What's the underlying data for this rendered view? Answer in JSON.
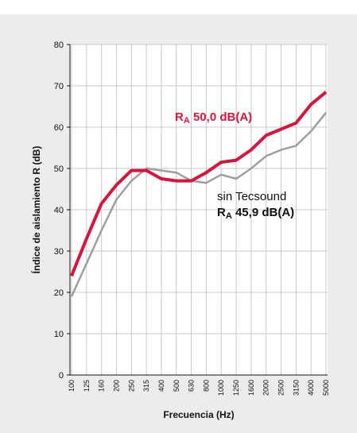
{
  "chart_data": {
    "type": "line",
    "y_label": "Índice de aislamiento R (dB)",
    "x_label": "Frecuencia (Hz)",
    "categories": [
      "100",
      "125",
      "160",
      "200",
      "250",
      "315",
      "400",
      "500",
      "630",
      "800",
      "1000",
      "1250",
      "1600",
      "2000",
      "2500",
      "3150",
      "4000",
      "5000"
    ],
    "series": [
      {
        "color": "#9e9e9e",
        "values": [
          19,
          27,
          35,
          42.5,
          47,
          50,
          49.5,
          49,
          47,
          46.5,
          48.5,
          47.5,
          50,
          53,
          54.5,
          55.5,
          59,
          63.5
        ]
      },
      {
        "color": "#d7143c",
        "values": [
          24,
          33,
          41.5,
          46,
          49.5,
          49.5,
          47.5,
          47,
          47,
          49,
          51.5,
          52,
          54.5,
          58,
          59.5,
          61,
          65.5,
          68.5
        ]
      }
    ],
    "annotations": [
      {
        "color": "#d7143c",
        "lines": [
          [
            "R",
            "A",
            " 50,0 dB(A)"
          ]
        ]
      },
      {
        "color": "#111111",
        "lines": [
          [
            "sin Tecsound"
          ],
          [
            "R",
            "A",
            " 45,9 dB(A)"
          ]
        ]
      }
    ],
    "ylim": [
      0,
      80
    ],
    "yticks": [
      0,
      10,
      20,
      30,
      40,
      50,
      60,
      70,
      80
    ],
    "grid": true
  }
}
